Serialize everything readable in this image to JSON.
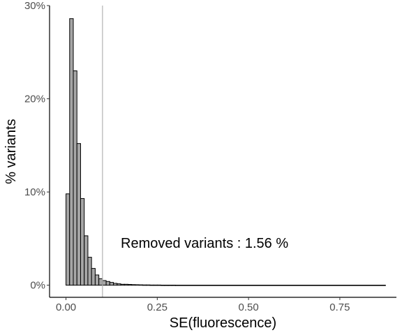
{
  "chart_data": {
    "type": "bar",
    "subtype": "histogram",
    "xlabel": "SE(fluorescence)",
    "ylabel": "% variants",
    "xlim": [
      -0.045,
      0.905
    ],
    "ylim": [
      -0.013,
      0.3
    ],
    "x_ticks": [
      0.0,
      0.25,
      0.5,
      0.75
    ],
    "x_tick_labels": [
      "0.00",
      "0.25",
      "0.50",
      "0.75"
    ],
    "y_ticks": [
      0.0,
      0.1,
      0.2,
      0.3
    ],
    "y_tick_labels": [
      "0%",
      "10%",
      "20%",
      "30%"
    ],
    "bin_width": 0.01,
    "bin_start": 0.0,
    "values": [
      0.098,
      0.286,
      0.23,
      0.152,
      0.093,
      0.053,
      0.03,
      0.018,
      0.011,
      0.007,
      0.005,
      0.004,
      0.003,
      0.002,
      0.0015,
      0.001,
      0.001,
      0.0008,
      0.0006,
      0.0005,
      0.0004,
      0.0003,
      0.0003,
      0.0002,
      0.0002,
      0.0002,
      0.0001,
      0.0001,
      0.0001,
      0.0001
    ],
    "tail_end": 0.875,
    "tail_value": 5e-05,
    "vline_x": 0.1,
    "annotation": {
      "text": "Removed variants : 1.56 %",
      "x": 0.15,
      "y": 0.04
    },
    "colors": {
      "bar_fill": "#a6a6a6",
      "bar_stroke": "#000000",
      "vline": "#b3b3b3",
      "axis": "#000000"
    },
    "grid": false,
    "legend": "none"
  }
}
